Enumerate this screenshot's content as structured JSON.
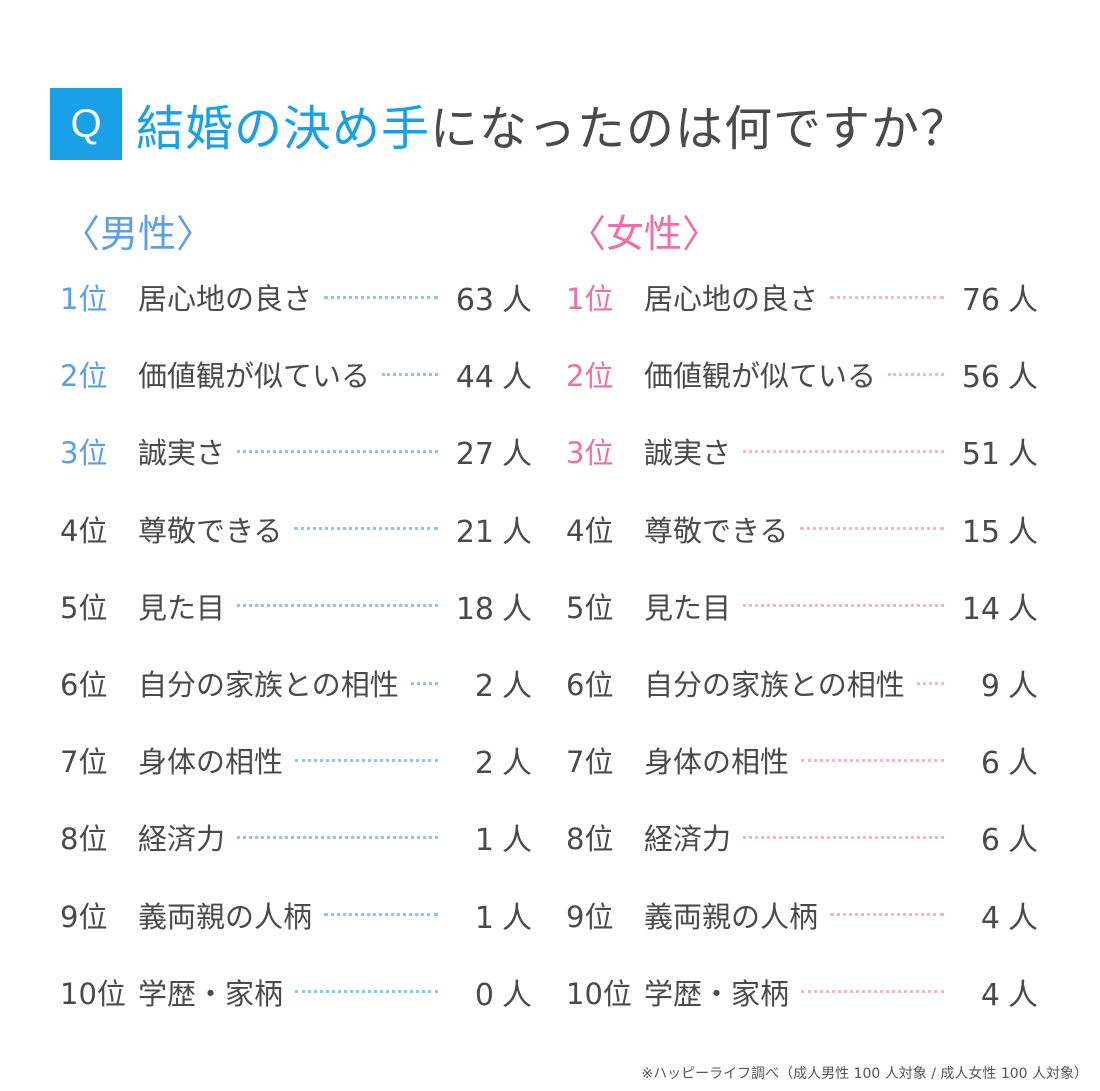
{
  "title": {
    "badge": "Q",
    "highlight": "結婚の決め手",
    "rest": "になったのは何ですか？"
  },
  "colors": {
    "accent_blue": "#1aa0e6",
    "male": "#5b9fe6",
    "female": "#ec6fa6",
    "text": "#4a4a4a"
  },
  "chart_data": [
    {
      "type": "table",
      "title": "〈男性〉",
      "unit": "人",
      "rows": [
        {
          "rank": "1位",
          "label": "居心地の良さ",
          "value": 63
        },
        {
          "rank": "2位",
          "label": "価値観が似ている",
          "value": 44
        },
        {
          "rank": "3位",
          "label": "誠実さ",
          "value": 27
        },
        {
          "rank": "4位",
          "label": "尊敬できる",
          "value": 21
        },
        {
          "rank": "5位",
          "label": "見た目",
          "value": 18
        },
        {
          "rank": "6位",
          "label": "自分の家族との相性",
          "value": 2
        },
        {
          "rank": "7位",
          "label": "身体の相性",
          "value": 2
        },
        {
          "rank": "8位",
          "label": "経済力",
          "value": 1
        },
        {
          "rank": "9位",
          "label": "義両親の人柄",
          "value": 1
        },
        {
          "rank": "10位",
          "label": "学歴・家柄",
          "value": 0
        }
      ]
    },
    {
      "type": "table",
      "title": "〈女性〉",
      "unit": "人",
      "rows": [
        {
          "rank": "1位",
          "label": "居心地の良さ",
          "value": 76
        },
        {
          "rank": "2位",
          "label": "価値観が似ている",
          "value": 56
        },
        {
          "rank": "3位",
          "label": "誠実さ",
          "value": 51
        },
        {
          "rank": "4位",
          "label": "尊敬できる",
          "value": 15
        },
        {
          "rank": "5位",
          "label": "見た目",
          "value": 14
        },
        {
          "rank": "6位",
          "label": "自分の家族との相性",
          "value": 9
        },
        {
          "rank": "7位",
          "label": "身体の相性",
          "value": 6
        },
        {
          "rank": "8位",
          "label": "経済力",
          "value": 6
        },
        {
          "rank": "9位",
          "label": "義両親の人柄",
          "value": 4
        },
        {
          "rank": "10位",
          "label": "学歴・家柄",
          "value": 4
        }
      ]
    }
  ],
  "footnote": "※ハッピーライフ調べ（成人男性 100 人対象 / 成人女性 100 人対象）"
}
